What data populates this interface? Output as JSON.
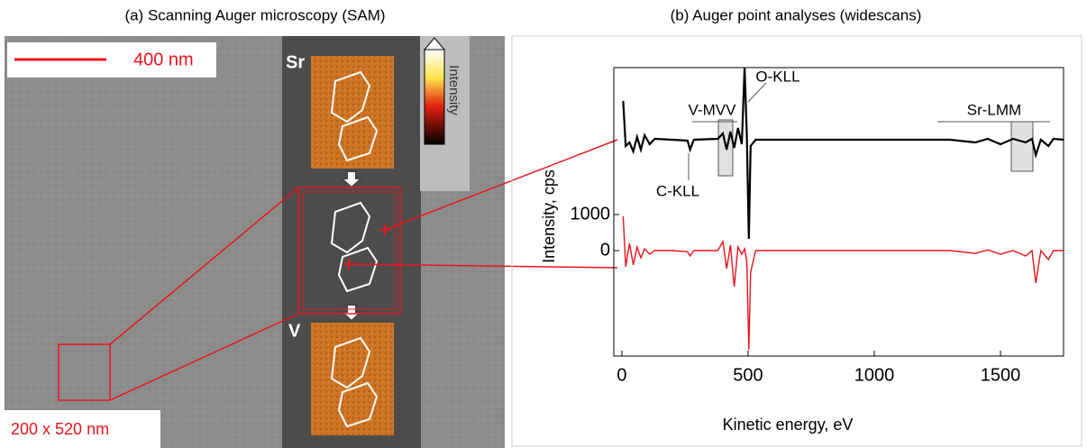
{
  "figure": {
    "left_title": "(a) Scanning Auger microscopy (SAM)",
    "scale_bar": "400 nm",
    "map_sr": "Sr",
    "map_v": "V",
    "colorbar_label": "Intensity",
    "region": "200 x 520 nm"
  },
  "chart_data": {
    "type": "line",
    "title": "(b) Auger point analyses (widescans)",
    "xlabel": "Kinetic energy, eV",
    "ylabel": "Intensity, cps",
    "x": [
      5,
      15,
      30,
      45,
      60,
      75,
      90,
      110,
      130,
      200,
      260,
      270,
      285,
      380,
      400,
      415,
      430,
      445,
      460,
      475,
      486,
      495,
      503,
      510,
      530,
      800,
      1300,
      1400,
      1450,
      1500,
      1550,
      1600,
      1625,
      1640,
      1660,
      1690,
      1710,
      1750
    ],
    "series": [
      {
        "name": "black",
        "color": "#000000",
        "values": [
          4150,
          2900,
          3000,
          2750,
          3150,
          2800,
          3200,
          2950,
          3100,
          3075,
          3050,
          2800,
          3075,
          3100,
          3250,
          2800,
          3300,
          2850,
          3400,
          2950,
          5075,
          3200,
          325,
          2900,
          3075,
          3075,
          3075,
          3000,
          3100,
          2950,
          3100,
          3000,
          3100,
          2650,
          3075,
          2900,
          3100,
          3075
        ]
      },
      {
        "name": "red",
        "color": "#e8141c",
        "values": [
          950,
          -450,
          200,
          -400,
          100,
          -200,
          50,
          -100,
          0,
          0,
          -30,
          -150,
          0,
          0,
          250,
          -500,
          150,
          -1000,
          100,
          -100,
          50,
          -300,
          -2750,
          -600,
          0,
          0,
          0,
          -80,
          20,
          -100,
          0,
          -150,
          0,
          -900,
          0,
          -250,
          0,
          0
        ]
      }
    ],
    "xlim": [
      -32,
      1750
    ],
    "ylim": [
      -2925,
      5075
    ],
    "xticks": [
      0,
      500,
      1000,
      1500
    ],
    "yticks": [
      0,
      1000
    ],
    "annotations": [
      "V-MVV",
      "O-KLL",
      "C-KLL",
      "Sr-LMM"
    ]
  }
}
